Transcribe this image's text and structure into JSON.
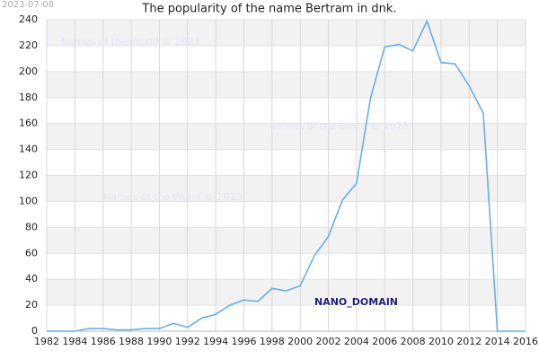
{
  "chart_data": {
    "type": "line",
    "title": "The popularity of the name Bertram in dnk.",
    "date_stamp": "2023-07-08",
    "annotations": [
      "Names of the World © 2023",
      "Names of the World © 2023",
      "Names of the World © 2023",
      "NANO_DOMAIN"
    ],
    "x": [
      1982,
      1983,
      1984,
      1985,
      1986,
      1987,
      1988,
      1989,
      1990,
      1991,
      1992,
      1993,
      1994,
      1995,
      1996,
      1997,
      1998,
      1999,
      2000,
      2001,
      2002,
      2003,
      2004,
      2005,
      2006,
      2007,
      2008,
      2009,
      2010,
      2011,
      2012,
      2013,
      2014,
      2015,
      2016
    ],
    "values": [
      0,
      0,
      0,
      2,
      2,
      1,
      1,
      2,
      2,
      6,
      3,
      10,
      13,
      20,
      24,
      23,
      33,
      31,
      35,
      58,
      73,
      101,
      114,
      180,
      219,
      221,
      216,
      239,
      207,
      206,
      189,
      168,
      0,
      0,
      0
    ],
    "color": "#6aaee8",
    "xlim": [
      1982,
      2016
    ],
    "xticks": [
      1982,
      1984,
      1986,
      1988,
      1990,
      1992,
      1994,
      1996,
      1998,
      2000,
      2002,
      2004,
      2006,
      2008,
      2010,
      2012,
      2014,
      2016
    ],
    "ylim": [
      0,
      240
    ],
    "yticks": [
      0,
      20,
      40,
      60,
      80,
      100,
      120,
      140,
      160,
      180,
      200,
      220,
      240
    ],
    "grid": true
  }
}
